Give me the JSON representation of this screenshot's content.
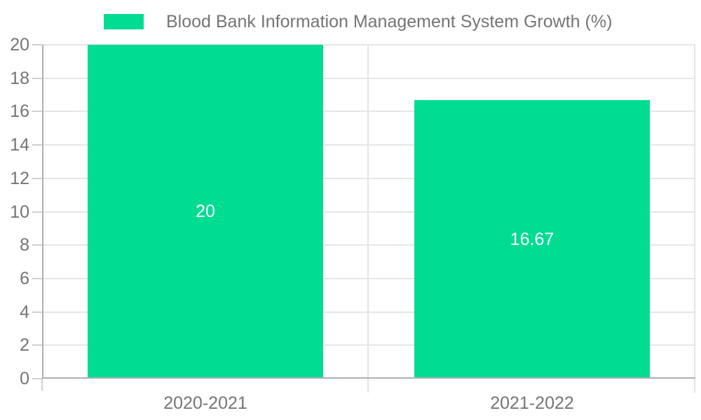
{
  "legend": {
    "label": "Blood Bank Information Management System Growth (%)"
  },
  "chart_data": {
    "type": "bar",
    "title": "Blood Bank Information Management System Growth (%)",
    "categories": [
      "2020-2021",
      "2021-2022"
    ],
    "series": [
      {
        "name": "Blood Bank Information Management System Growth (%)",
        "values": [
          20,
          16.67
        ]
      }
    ],
    "value_labels": [
      "20",
      "16.67"
    ],
    "xlabel": "",
    "ylabel": "",
    "ylim": [
      0,
      20
    ],
    "yticks": [
      0,
      2,
      4,
      6,
      8,
      10,
      12,
      14,
      16,
      18,
      20
    ],
    "grid": true,
    "legend_position": "top",
    "colors": {
      "bar": "#00dc91",
      "axis_text": "#757575",
      "value_label_text": "#ffffff",
      "gridline": "#e6e6e6",
      "axis_line": "#b0b0b0",
      "tick_line": "#cfcfcf",
      "divider_line": "#e3e3e3"
    }
  }
}
